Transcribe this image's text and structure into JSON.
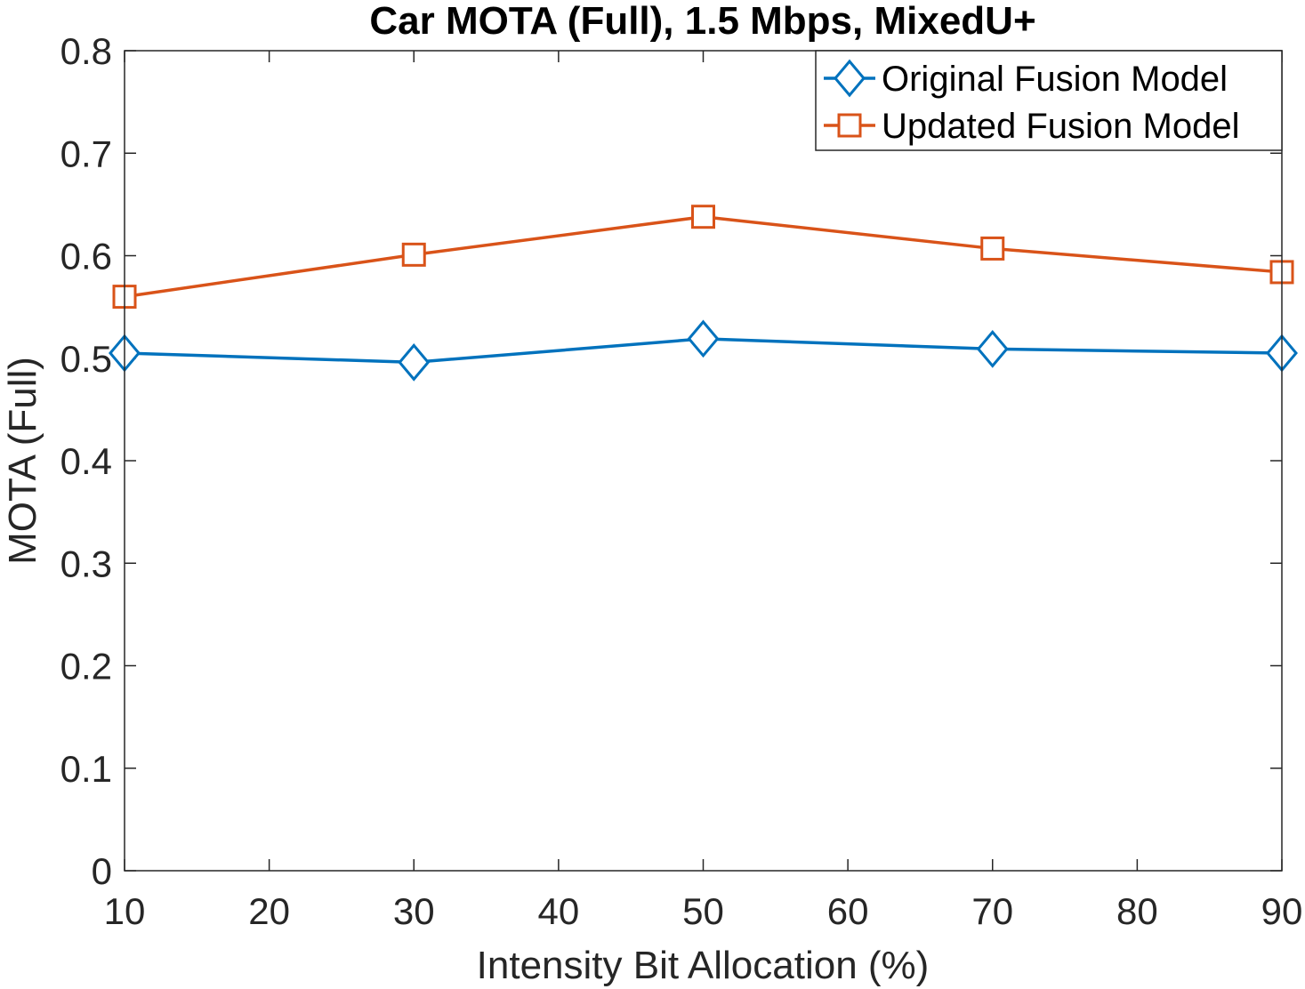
{
  "chart_data": {
    "type": "line",
    "title": "Car MOTA (Full), 1.5 Mbps, MixedU+",
    "xlabel": "Intensity Bit Allocation (%)",
    "ylabel": "MOTA (Full)",
    "xlim": [
      10,
      90
    ],
    "ylim": [
      0,
      0.8
    ],
    "xticks": [
      10,
      20,
      30,
      40,
      50,
      60,
      70,
      80,
      90
    ],
    "xtick_labels": [
      "10",
      "20",
      "30",
      "40",
      "50",
      "60",
      "70",
      "80",
      "90"
    ],
    "yticks": [
      0,
      0.1,
      0.2,
      0.3,
      0.4,
      0.5,
      0.6,
      0.7,
      0.8
    ],
    "ytick_labels": [
      "0",
      "0.1",
      "0.2",
      "0.3",
      "0.4",
      "0.5",
      "0.6",
      "0.7",
      "0.8"
    ],
    "grid": false,
    "legend_position": "top-right",
    "x": [
      10,
      30,
      50,
      70,
      90
    ],
    "series": [
      {
        "name": "Original Fusion Model",
        "marker": "diamond",
        "color": "#0072BD",
        "values": [
          0.505,
          0.496,
          0.519,
          0.509,
          0.505
        ]
      },
      {
        "name": "Updated Fusion Model",
        "marker": "square",
        "color": "#D95319",
        "values": [
          0.56,
          0.601,
          0.638,
          0.607,
          0.584
        ]
      }
    ]
  }
}
